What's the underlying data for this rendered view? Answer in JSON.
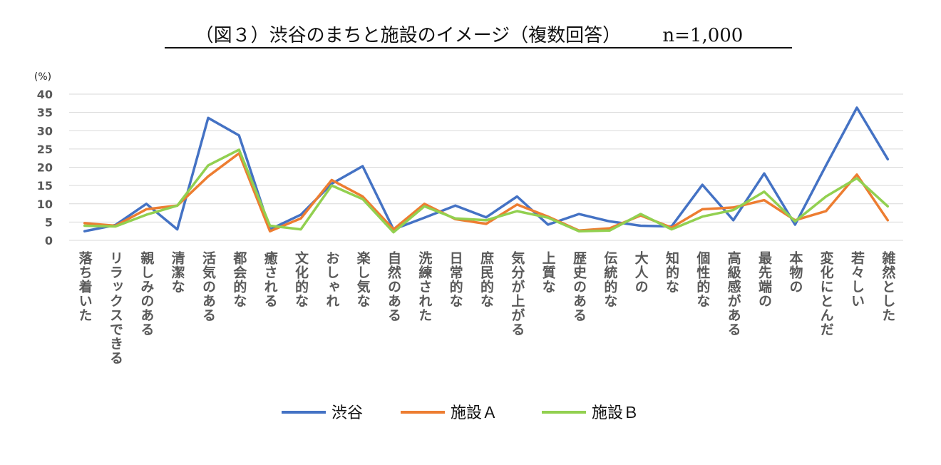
{
  "chart_data": {
    "type": "line",
    "title": "（図３）渋谷のまちと施設のイメージ（複数回答）",
    "sample_size": "n=1,000",
    "ylabel": "(%)",
    "ylim": [
      0,
      40
    ],
    "yticks": [
      0,
      5,
      10,
      15,
      20,
      25,
      30,
      35,
      40
    ],
    "grid": true,
    "legend_position": "bottom",
    "categories": [
      "落ち着いた",
      "リラックスできる",
      "親しみのある",
      "清潔な",
      "活気のある",
      "都会的な",
      "癒される",
      "文化的な",
      "おしゃれ",
      "楽し気な",
      "自然のある",
      "洗練された",
      "日常的な",
      "庶民的な",
      "気分が上がる",
      "上質な",
      "歴史のある",
      "伝統的な",
      "大人の",
      "知的な",
      "個性的な",
      "高級感がある",
      "最先端の",
      "本物の",
      "変化にとんだ",
      "若々しい",
      "雑然とした"
    ],
    "series": [
      {
        "name": "渋谷",
        "color": "#4472c4",
        "values": [
          2.5,
          4.2,
          10.0,
          3.0,
          33.5,
          28.7,
          3.0,
          7.0,
          15.5,
          20.3,
          3.0,
          6.2,
          9.5,
          6.3,
          12.0,
          4.3,
          7.2,
          5.2,
          4.0,
          3.8,
          15.2,
          5.5,
          18.3,
          4.3,
          20.5,
          36.3,
          22.2
        ]
      },
      {
        "name": "施設Ａ",
        "color": "#ed7d31",
        "values": [
          4.7,
          4.0,
          8.5,
          9.5,
          17.5,
          23.8,
          2.5,
          6.0,
          16.5,
          12.0,
          3.0,
          10.0,
          5.8,
          4.5,
          9.8,
          6.5,
          2.7,
          3.3,
          6.8,
          3.5,
          8.5,
          9.0,
          11.0,
          5.5,
          8.0,
          18.0,
          5.5
        ]
      },
      {
        "name": "施設Ｂ",
        "color": "#92d050",
        "values": [
          4.0,
          3.8,
          7.0,
          9.5,
          20.5,
          24.8,
          4.0,
          3.0,
          15.0,
          11.3,
          2.2,
          9.3,
          6.0,
          5.5,
          8.0,
          6.2,
          2.5,
          2.7,
          7.2,
          3.0,
          6.5,
          8.3,
          13.3,
          5.2,
          12.0,
          17.0,
          9.3
        ]
      }
    ]
  }
}
